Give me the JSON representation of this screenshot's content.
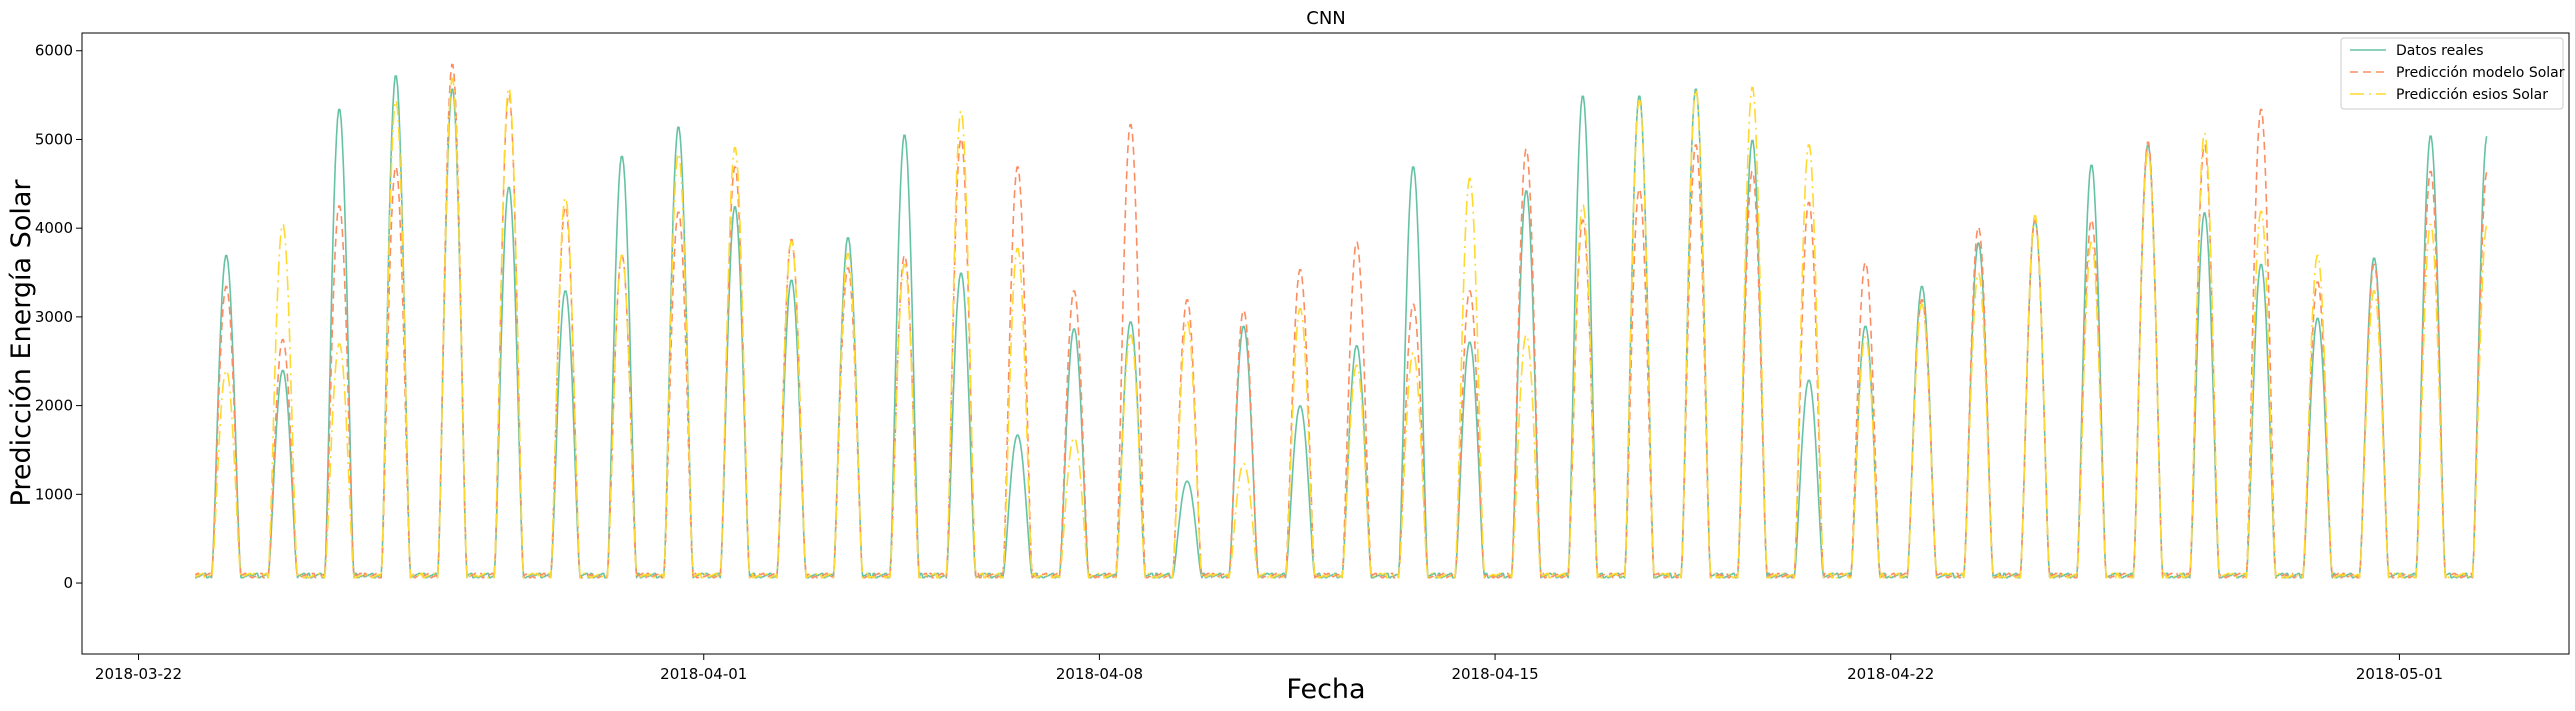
{
  "chart_data": {
    "type": "line",
    "title": "CNN",
    "xlabel": "Fecha",
    "ylabel": "Predicción Energía Solar",
    "xlim": [
      "2018-03-21T00:00",
      "2018-05-04T00:00"
    ],
    "ylim": [
      -800,
      6200
    ],
    "x_ticks": [
      "2018-03-22",
      "2018-04-01",
      "2018-04-08",
      "2018-04-15",
      "2018-04-22",
      "2018-05-01"
    ],
    "y_ticks": [
      0,
      1000,
      2000,
      3000,
      4000,
      5000,
      6000
    ],
    "grid": false,
    "legend_position": "top-right",
    "start_date": "2018-03-23",
    "series": [
      {
        "name": "Datos reales",
        "color": "#66c2a5",
        "dash": "",
        "daily_peaks": [
          3700,
          2400,
          5350,
          5730,
          5580,
          4470,
          3300,
          4820,
          5150,
          4250,
          3420,
          3900,
          5060,
          3500,
          1670,
          2870,
          2950,
          1150,
          2900,
          2000,
          2680,
          4700,
          2720,
          4430,
          5500,
          5500,
          5580,
          5000,
          2290,
          2900,
          3350,
          3840,
          4100,
          4720,
          4950,
          4180,
          3600,
          2990,
          3670,
          5050
        ]
      },
      {
        "name": "Predicción modelo Solar",
        "color": "#fc8d62",
        "dash": "8,5",
        "daily_peaks": [
          3350,
          2750,
          4260,
          4700,
          5860,
          5520,
          4250,
          3700,
          4190,
          4700,
          3880,
          3560,
          3700,
          5020,
          4700,
          3300,
          5180,
          3200,
          3080,
          3540,
          3850,
          3150,
          3300,
          4900,
          4100,
          4450,
          4950,
          4650,
          4300,
          3620,
          3200,
          4020,
          4100,
          4100,
          4980,
          4950,
          5350,
          3400,
          3600,
          4650
        ]
      },
      {
        "name": "Predicción esios Solar",
        "color": "#ffd92f",
        "dash": "14,5,2,5",
        "daily_peaks": [
          2400,
          4050,
          2700,
          5450,
          5700,
          5590,
          4350,
          3700,
          4850,
          4920,
          3860,
          3720,
          3600,
          5330,
          3780,
          1640,
          2800,
          2960,
          1350,
          3100,
          2460,
          2600,
          4570,
          2800,
          4270,
          5450,
          5570,
          5600,
          4950,
          2780,
          3150,
          3500,
          4150,
          3850,
          4880,
          5080,
          4200,
          3700,
          3300,
          4050
        ]
      }
    ]
  }
}
